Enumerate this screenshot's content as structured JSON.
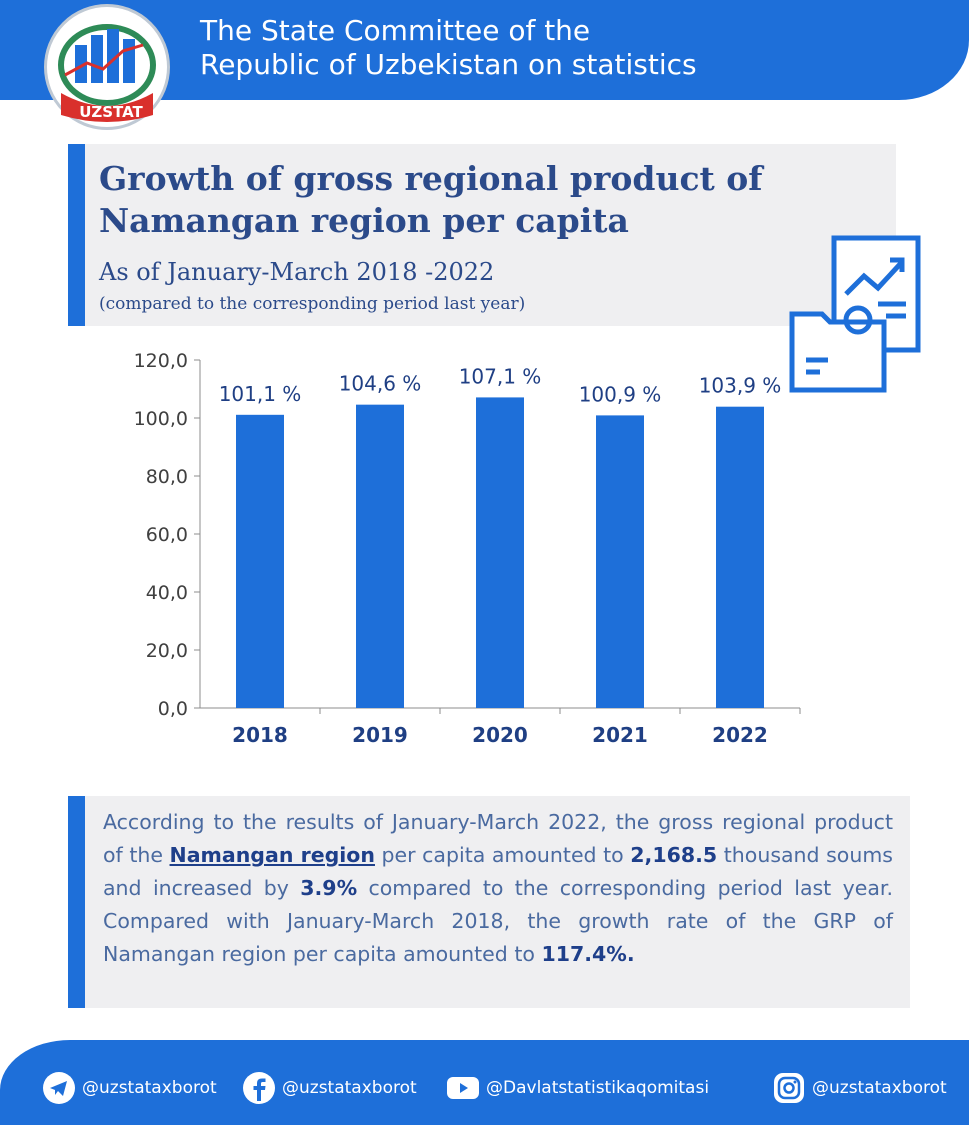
{
  "header": {
    "title_line1": "The State Committee of the",
    "title_line2": "Republic of Uzbekistan on statistics",
    "logo_text": "UZSTAT"
  },
  "title": {
    "main_line1": "Growth of gross regional product of",
    "main_line2": "Namangan region per capita",
    "subtitle": "As of January-March 2018 -2022",
    "subnote": "(compared to the corresponding period last year)"
  },
  "chart_data": {
    "type": "bar",
    "categories": [
      "2018",
      "2019",
      "2020",
      "2021",
      "2022"
    ],
    "values": [
      101.1,
      104.6,
      107.1,
      100.9,
      103.9
    ],
    "data_labels": [
      "101,1 %",
      "104,6 %",
      "107,1 %",
      "100,9 %",
      "103,9 %"
    ],
    "yticks": [
      "0,0",
      "20,0",
      "40,0",
      "60,0",
      "80,0",
      "100,0",
      "120,0"
    ],
    "ylim": [
      0,
      120
    ],
    "title": "",
    "xlabel": "",
    "ylabel": "",
    "bar_color": "#1e6fd9"
  },
  "text": {
    "p1": "According to the results of January-March 2022, the gross regional product of the",
    "region": "Namangan region",
    "p2": "per capita amounted to",
    "amount": "2,168.5",
    "p3": "thousand soums and increased by",
    "growth": "3.9%",
    "p4": "compared to the corresponding period last year. Compared with January-March 2018, the growth rate of the GRP of Namangan region per capita amounted to",
    "total": "117.4%."
  },
  "footer": {
    "telegram": "@uzstataxborot",
    "facebook": "@uzstataxborot",
    "youtube": "@Davlatstatistikaqomitasi",
    "instagram": "@uzstataxborot"
  },
  "colors": {
    "accent": "#1e6fd9",
    "title": "#2b4a8a",
    "panel": "#efeff1"
  }
}
